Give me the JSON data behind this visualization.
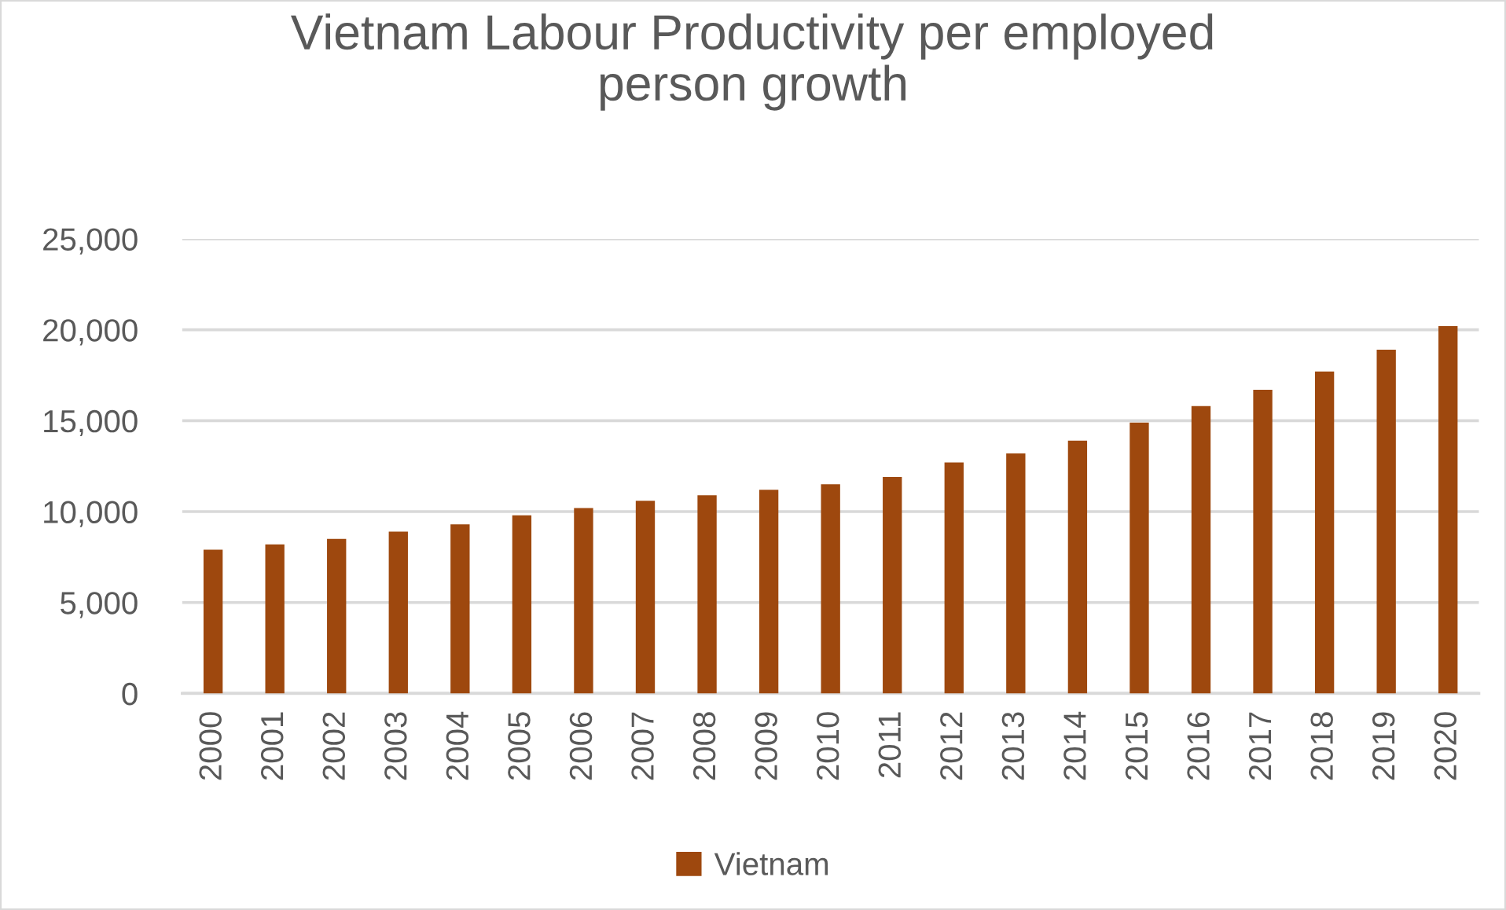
{
  "chart_data": {
    "type": "bar",
    "title": "Vietnam Labour Productivity per employed\nperson growth",
    "categories": [
      "2000",
      "2001",
      "2002",
      "2003",
      "2004",
      "2005",
      "2006",
      "2007",
      "2008",
      "2009",
      "2010",
      "2011",
      "2012",
      "2013",
      "2014",
      "2015",
      "2016",
      "2017",
      "2018",
      "2019",
      "2020"
    ],
    "series": [
      {
        "name": "Vietnam",
        "color": "#9e480e",
        "values": [
          7900,
          8200,
          8500,
          8900,
          9300,
          9800,
          10200,
          10600,
          10900,
          11200,
          11500,
          11900,
          12700,
          13200,
          13900,
          14900,
          15800,
          16700,
          17700,
          18900,
          20200
        ]
      }
    ],
    "ylim": [
      0,
      25000
    ],
    "yticks": [
      0,
      {
        "value": 5000,
        "label": "5,000"
      },
      {
        "value": 10000,
        "label": "10,000"
      },
      {
        "value": 15000,
        "label": "15,000"
      },
      {
        "value": 20000,
        "label": "20,000"
      },
      {
        "value": 25000,
        "label": "25,000"
      }
    ],
    "grid": "y",
    "legend": "bottom"
  }
}
